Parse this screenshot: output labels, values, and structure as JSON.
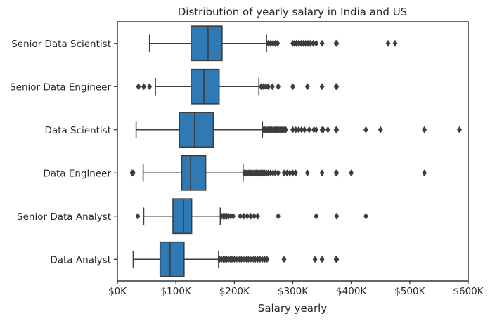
{
  "chart_data": {
    "type": "box",
    "title": "Distribution of yearly salary in India and US",
    "xlabel": "Salary yearly",
    "ylabel": "",
    "xlim": [
      0,
      600000
    ],
    "xticks": [
      0,
      100000,
      200000,
      300000,
      400000,
      500000,
      600000
    ],
    "xtick_labels": [
      "$0K",
      "$100K",
      "$200K",
      "$300K",
      "$400K",
      "$500K",
      "$600K"
    ],
    "grid": false,
    "box_color": "#2f7ab5",
    "line_color": "#3d3d3d",
    "categories": [
      "Senior Data Scientist",
      "Senior Data Engineer",
      "Data Scientist",
      "Data Engineer",
      "Senior Data Analyst",
      "Data Analyst"
    ],
    "boxes": [
      {
        "category": "Senior Data Scientist",
        "whisker_low": 55000,
        "q1": 126000,
        "median": 155000,
        "q3": 179000,
        "whisker_high": 255000,
        "outliers": [
          258000,
          262000,
          266000,
          270000,
          274000,
          300000,
          303000,
          306000,
          310000,
          314000,
          318000,
          322000,
          326000,
          330000,
          335000,
          340000,
          350000,
          374000,
          375000,
          463000,
          475000
        ]
      },
      {
        "category": "Senior Data Engineer",
        "whisker_low": 65000,
        "q1": 126000,
        "median": 148000,
        "q3": 174000,
        "whisker_high": 242000,
        "outliers": [
          36000,
          45000,
          55000,
          246000,
          250000,
          254000,
          258000,
          265000,
          275000,
          300000,
          325000,
          350000,
          374000,
          375000
        ]
      },
      {
        "category": "Data Scientist",
        "whisker_low": 32000,
        "q1": 106000,
        "median": 132000,
        "q3": 164000,
        "whisker_high": 248000,
        "outliers": [
          250000,
          252000,
          254000,
          256000,
          258000,
          260000,
          262000,
          264000,
          266000,
          268000,
          270000,
          272000,
          274000,
          276000,
          278000,
          280000,
          282000,
          285000,
          288000,
          300000,
          305000,
          310000,
          315000,
          320000,
          328000,
          336000,
          340000,
          350000,
          352000,
          360000,
          374000,
          375000,
          425000,
          450000,
          525000,
          585000
        ]
      },
      {
        "category": "Data Engineer",
        "whisker_low": 44000,
        "q1": 110000,
        "median": 125000,
        "q3": 151000,
        "whisker_high": 215000,
        "outliers": [
          25000,
          27000,
          217000,
          220000,
          222000,
          224000,
          226000,
          228000,
          230000,
          232000,
          234000,
          236000,
          238000,
          240000,
          242000,
          244000,
          246000,
          248000,
          250000,
          252000,
          255000,
          258000,
          262000,
          266000,
          270000,
          275000,
          285000,
          290000,
          295000,
          300000,
          305000,
          325000,
          350000,
          374000,
          375000,
          400000,
          525000
        ]
      },
      {
        "category": "Senior Data Analyst",
        "whisker_low": 45000,
        "q1": 95000,
        "median": 113000,
        "q3": 127000,
        "whisker_high": 176000,
        "outliers": [
          35000,
          178000,
          181000,
          184000,
          187000,
          190000,
          194000,
          198000,
          210000,
          216000,
          222000,
          228000,
          234000,
          240000,
          275000,
          340000,
          375000,
          425000
        ]
      },
      {
        "category": "Data Analyst",
        "whisker_low": 27000,
        "q1": 73000,
        "median": 90000,
        "q3": 114000,
        "whisker_high": 173000,
        "outliers": [
          175000,
          178000,
          181000,
          184000,
          187000,
          190000,
          193000,
          196000,
          200000,
          203000,
          206000,
          209000,
          212000,
          215000,
          218000,
          221000,
          224000,
          227000,
          230000,
          233000,
          236000,
          240000,
          244000,
          248000,
          252000,
          256000,
          285000,
          338000,
          350000,
          374000,
          375000
        ]
      }
    ]
  }
}
